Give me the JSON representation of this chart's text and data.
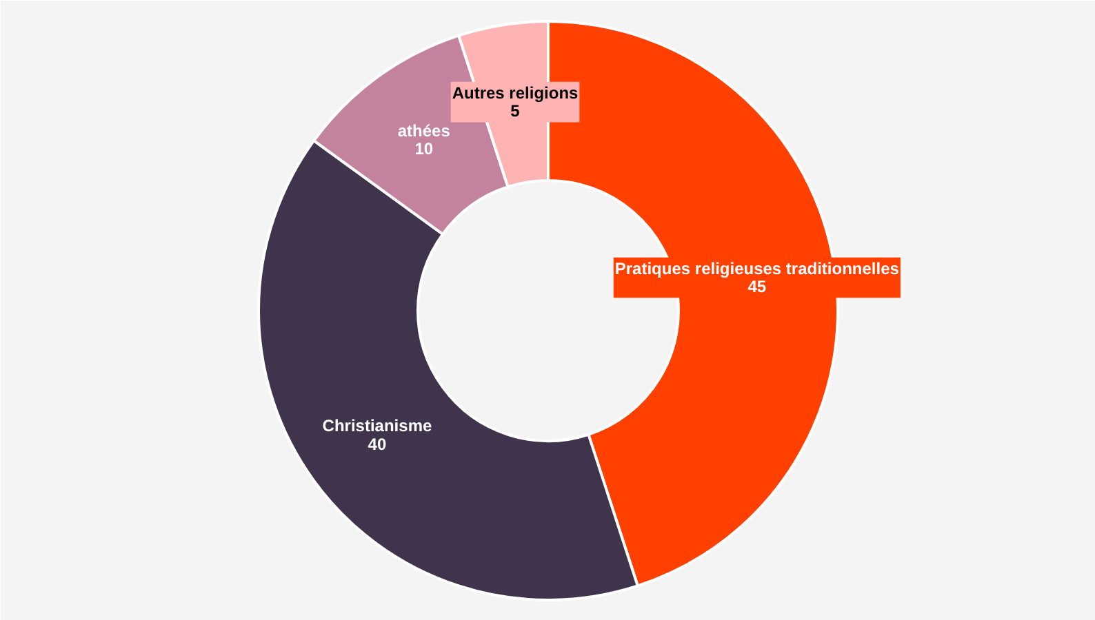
{
  "chart_data": {
    "type": "donut",
    "categories": [
      "Pratiques religieuses traditionnelles",
      "Christianisme",
      "athées",
      "Autres religions"
    ],
    "values": [
      45,
      40,
      10,
      5
    ],
    "colors": [
      "#ff4000",
      "#40344d",
      "#c3829e",
      "#ffb3b3"
    ],
    "data_labels": true
  }
}
